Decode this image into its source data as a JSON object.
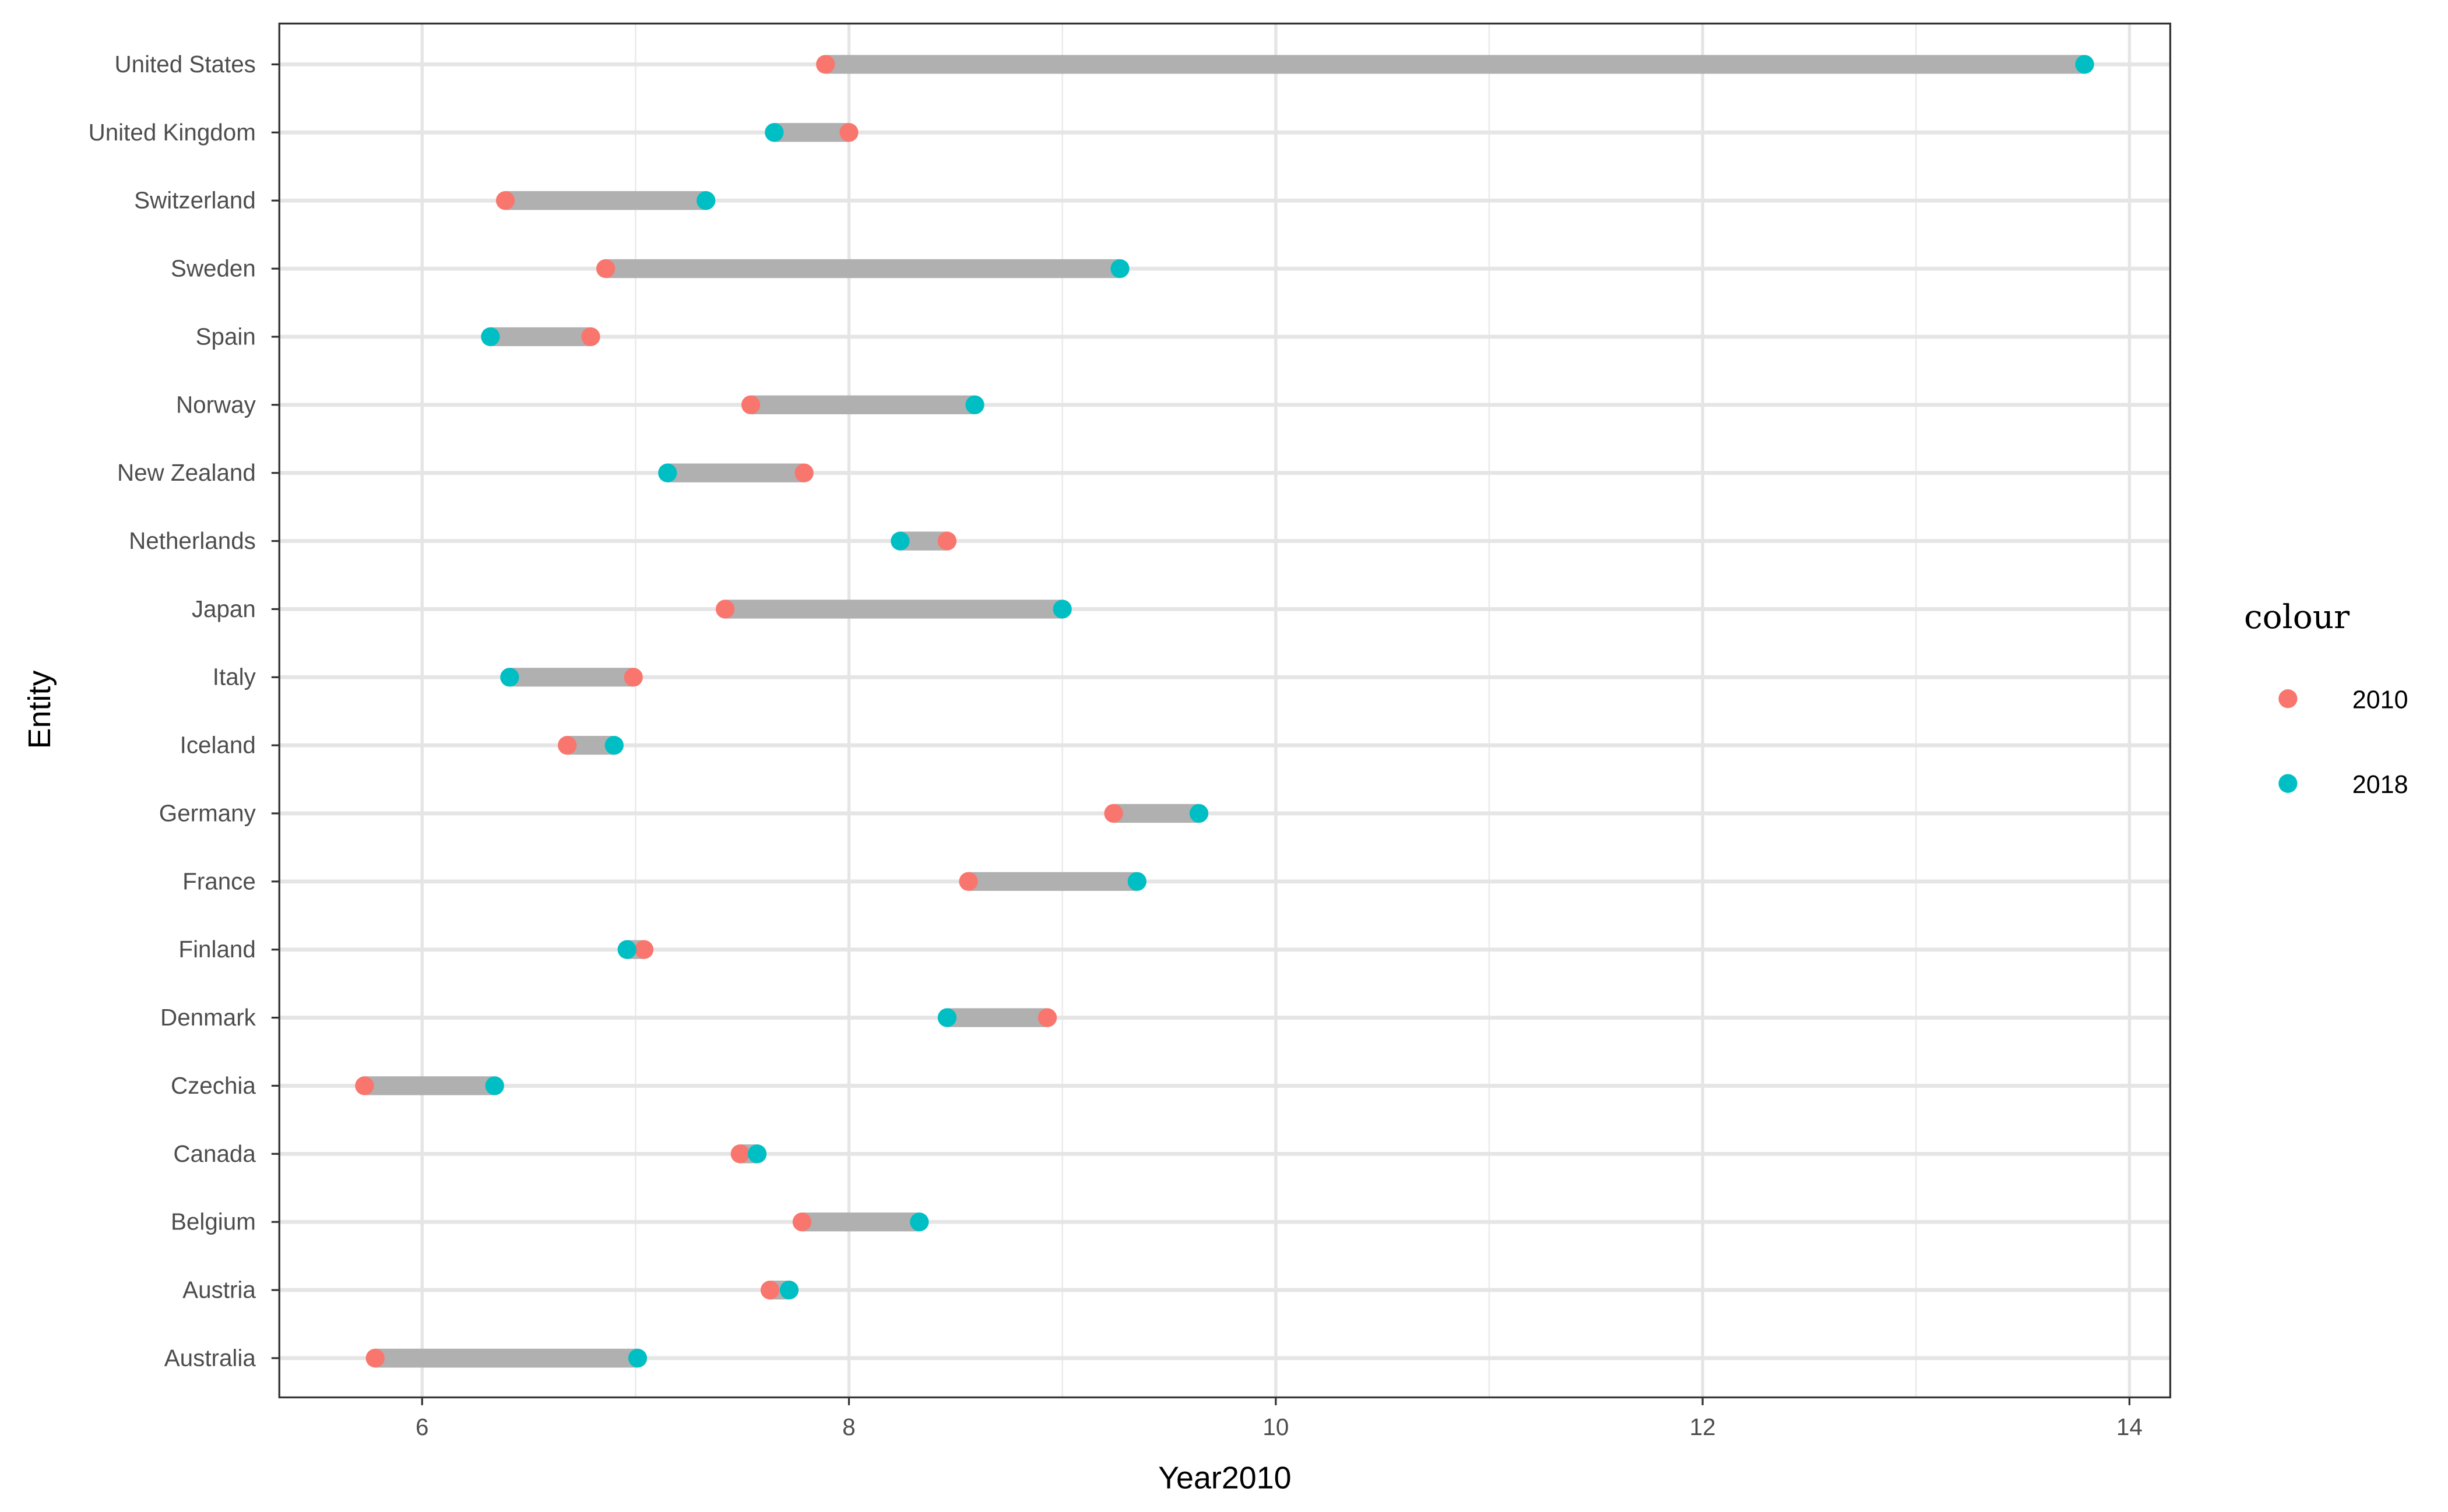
{
  "chart_data": {
    "type": "dumbbell",
    "xlabel": "Year2010",
    "ylabel": "Entity",
    "xlim": [
      5.35,
      14.2
    ],
    "xticks": [
      6,
      8,
      10,
      12,
      14
    ],
    "grid": true,
    "legend": {
      "title": "colour",
      "placement": "right",
      "entries": [
        {
          "label": "2010",
          "color": "#F8766D"
        },
        {
          "label": "2018",
          "color": "#00BFC4"
        }
      ]
    },
    "connector_color": "#B0B0B0",
    "categories": [
      "United States",
      "United Kingdom",
      "Switzerland",
      "Sweden",
      "Spain",
      "Norway",
      "New Zealand",
      "Netherlands",
      "Japan",
      "Italy",
      "Iceland",
      "Germany",
      "France",
      "Finland",
      "Denmark",
      "Czechia",
      "Canada",
      "Belgium",
      "Austria",
      "Australia"
    ],
    "series": [
      {
        "name": "2010",
        "values": [
          7.89,
          8.0,
          6.39,
          6.86,
          6.79,
          7.54,
          7.79,
          8.46,
          7.42,
          6.99,
          6.68,
          9.24,
          8.56,
          7.04,
          8.93,
          5.73,
          7.49,
          7.78,
          7.63,
          5.78
        ]
      },
      {
        "name": "2018",
        "values": [
          13.79,
          7.65,
          7.33,
          9.27,
          6.32,
          8.59,
          7.15,
          8.24,
          9.0,
          6.41,
          6.9,
          9.64,
          9.35,
          6.96,
          8.46,
          6.34,
          7.57,
          8.33,
          7.72,
          7.01
        ]
      }
    ]
  }
}
